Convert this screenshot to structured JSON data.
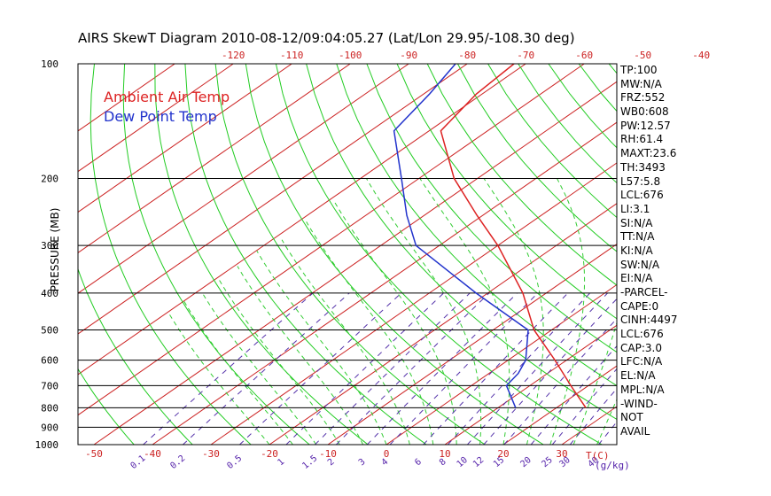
{
  "chart_data": {
    "type": "line",
    "title": "AIRS SkewT Diagram 2010-08-12/09:04:05.27 (Lat/Lon 29.95/-108.30 deg)",
    "ylabel": "PRESSURE (MB)",
    "xlabel_bottom": "T(C)",
    "mixing_ratio_unit": "(g/kg)",
    "y_scale": "log",
    "ylim": [
      1000,
      100
    ],
    "pressure_ticks": [
      "100",
      "200",
      "300",
      "400",
      "500",
      "600",
      "700",
      "800",
      "900",
      "1000"
    ],
    "bottom_temp_ticks": [
      -50,
      -40,
      -30,
      -20,
      -10,
      0,
      10,
      20,
      30
    ],
    "top_temp_ticks": [
      -120,
      -110,
      -100,
      -90,
      -80,
      -70,
      -60,
      -50,
      -40
    ],
    "mixing_ratio_labels": [
      "0.1",
      "0.2",
      "0.5",
      "1",
      "1.5",
      "2",
      "3",
      "4",
      "6",
      "8",
      "10",
      "12",
      "15",
      "20",
      "25",
      "30",
      "40"
    ],
    "mixing_ratio_values": [
      0.1,
      0.2,
      0.5,
      1,
      1.5,
      2,
      3,
      4,
      6,
      8,
      10,
      12,
      15,
      20,
      25,
      30,
      40
    ],
    "grid": true,
    "legend_position": "top-left",
    "series": [
      {
        "name": "Ambient Air Temp",
        "color": "#dd2222",
        "points": [
          [
            800,
            25
          ],
          [
            700,
            17
          ],
          [
            600,
            8
          ],
          [
            500,
            -3
          ],
          [
            400,
            -14
          ],
          [
            300,
            -30
          ],
          [
            250,
            -41
          ],
          [
            200,
            -54
          ],
          [
            150,
            -68
          ],
          [
            120,
            -71
          ],
          [
            100,
            -72
          ]
        ]
      },
      {
        "name": "Dew Point Temp",
        "color": "#2233cc",
        "points": [
          [
            800,
            13
          ],
          [
            700,
            6
          ],
          [
            650,
            5
          ],
          [
            600,
            3
          ],
          [
            500,
            -4
          ],
          [
            400,
            -22
          ],
          [
            300,
            -44
          ],
          [
            250,
            -53
          ],
          [
            200,
            -63
          ],
          [
            150,
            -76
          ],
          [
            120,
            -79
          ],
          [
            100,
            -82
          ]
        ]
      }
    ],
    "indices": [
      "TP:100",
      "MW:N/A",
      "FRZ:552",
      "WB0:608",
      "PW:12.57",
      "RH:61.4",
      "MAXT:23.6",
      "TH:3493",
      "L57:5.8",
      "LCL:676",
      "LI:3.1",
      "SI:N/A",
      "TT:N/A",
      "KI:N/A",
      "SW:N/A",
      "EI:N/A",
      "-PARCEL-",
      "CAPE:0",
      "CINH:4497",
      "LCL:676",
      "CAP:3.0",
      "LFC:N/A",
      "EL:N/A",
      "MPL:N/A",
      "-WIND-",
      "NOT",
      "AVAIL"
    ],
    "colors": {
      "temp_grid": "#cc2222",
      "dry_adiabat": "#22cc22",
      "moist_adiabat": "#33cc33",
      "mixing_ratio": "#5533aa",
      "axis_labels": "#cc2222",
      "mixing_labels": "#5522aa"
    }
  }
}
